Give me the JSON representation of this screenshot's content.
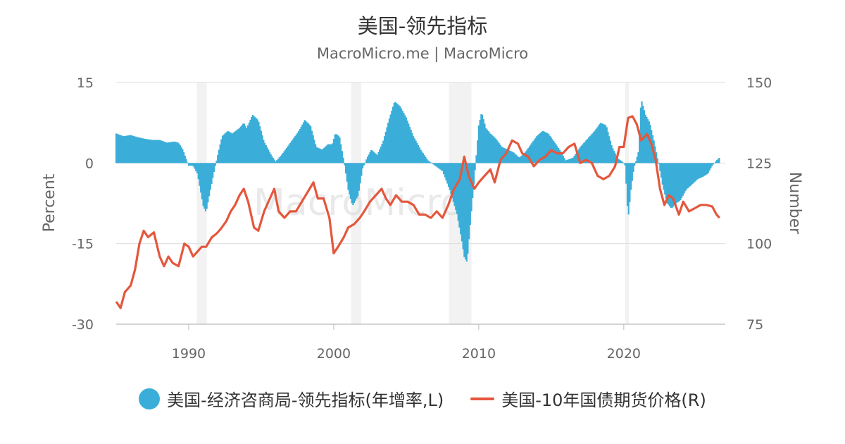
{
  "title": "美国-领先指标",
  "subtitle": "MacroMicro.me | MacroMicro",
  "watermark": "MacroMicro",
  "colors": {
    "bars": "#3aaed8",
    "line": "#e4573d",
    "recession": "#f2f2f2",
    "grid": "#dddddd"
  },
  "chart_data": {
    "type": "bar",
    "title": "美国-领先指标",
    "subtitle": "MacroMicro.me | MacroMicro",
    "left_axis": {
      "label": "Percent",
      "min": -30,
      "max": 15,
      "ticks": [
        "15",
        "0",
        "-15",
        "-30"
      ]
    },
    "right_axis": {
      "label": "Number",
      "min": 75,
      "max": 150,
      "ticks": [
        "150",
        "125",
        "100",
        "75"
      ]
    },
    "x_axis": {
      "min": 1985,
      "max": 2027,
      "ticks": [
        "1990",
        "2000",
        "2010",
        "2020"
      ]
    },
    "grid": true,
    "legend_placement": "bottom",
    "recessions": [
      [
        1990.55,
        1991.25
      ],
      [
        2001.2,
        2001.9
      ],
      [
        2007.95,
        2009.5
      ],
      [
        2020.1,
        2020.35
      ]
    ],
    "series": [
      {
        "name": "美国-经济咨商局-领先指标(年增率,L)",
        "type": "bar",
        "axis": "left",
        "points": [
          [
            1985.0,
            5.5
          ],
          [
            1985.5,
            5.0
          ],
          [
            1986.0,
            5.2
          ],
          [
            1986.5,
            4.8
          ],
          [
            1987.0,
            4.5
          ],
          [
            1987.5,
            4.3
          ],
          [
            1988.0,
            4.3
          ],
          [
            1988.5,
            3.8
          ],
          [
            1989.0,
            4.0
          ],
          [
            1989.3,
            3.8
          ],
          [
            1989.6,
            2.5
          ],
          [
            1989.8,
            1.0
          ],
          [
            1990.0,
            -0.5
          ],
          [
            1990.3,
            -0.5
          ],
          [
            1990.6,
            -2.0
          ],
          [
            1990.8,
            -5.0
          ],
          [
            1991.0,
            -8.0
          ],
          [
            1991.2,
            -9.2
          ],
          [
            1991.5,
            -5.0
          ],
          [
            1991.8,
            -1.0
          ],
          [
            1992.0,
            1.5
          ],
          [
            1992.3,
            5.0
          ],
          [
            1992.7,
            6.0
          ],
          [
            1993.0,
            5.5
          ],
          [
            1993.5,
            6.5
          ],
          [
            1993.8,
            7.5
          ],
          [
            1994.0,
            6.5
          ],
          [
            1994.4,
            9.0
          ],
          [
            1994.8,
            8.0
          ],
          [
            1995.2,
            4.0
          ],
          [
            1995.7,
            1.5
          ],
          [
            1996.0,
            0.3
          ],
          [
            1996.4,
            1.5
          ],
          [
            1996.8,
            3.0
          ],
          [
            1997.2,
            4.5
          ],
          [
            1997.6,
            6.0
          ],
          [
            1998.0,
            8.0
          ],
          [
            1998.4,
            7.0
          ],
          [
            1998.8,
            3.0
          ],
          [
            1999.2,
            2.5
          ],
          [
            1999.6,
            3.5
          ],
          [
            1999.9,
            3.5
          ],
          [
            2000.1,
            5.5
          ],
          [
            2000.4,
            5.0
          ],
          [
            2000.7,
            0.5
          ],
          [
            2001.0,
            -5.0
          ],
          [
            2001.3,
            -8.0
          ],
          [
            2001.7,
            -6.0
          ],
          [
            2002.0,
            -1.0
          ],
          [
            2002.3,
            1.0
          ],
          [
            2002.6,
            2.5
          ],
          [
            2003.0,
            1.5
          ],
          [
            2003.4,
            4.0
          ],
          [
            2003.8,
            8.0
          ],
          [
            2004.2,
            11.5
          ],
          [
            2004.6,
            10.5
          ],
          [
            2005.0,
            8.5
          ],
          [
            2005.5,
            5.0
          ],
          [
            2006.0,
            2.5
          ],
          [
            2006.5,
            0.5
          ],
          [
            2007.0,
            -0.5
          ],
          [
            2007.5,
            -1.5
          ],
          [
            2008.0,
            -5.0
          ],
          [
            2008.5,
            -9.5
          ],
          [
            2008.8,
            -14.0
          ],
          [
            2009.0,
            -17.5
          ],
          [
            2009.2,
            -18.5
          ],
          [
            2009.4,
            -12.0
          ],
          [
            2009.7,
            -3.0
          ],
          [
            2010.0,
            7.0
          ],
          [
            2010.2,
            9.5
          ],
          [
            2010.5,
            6.5
          ],
          [
            2010.8,
            5.5
          ],
          [
            2011.2,
            4.5
          ],
          [
            2011.6,
            3.0
          ],
          [
            2012.0,
            2.5
          ],
          [
            2012.4,
            2.0
          ],
          [
            2012.8,
            1.0
          ],
          [
            2013.2,
            2.0
          ],
          [
            2013.6,
            3.5
          ],
          [
            2014.0,
            5.0
          ],
          [
            2014.4,
            6.0
          ],
          [
            2014.8,
            5.5
          ],
          [
            2015.2,
            4.0
          ],
          [
            2015.7,
            2.0
          ],
          [
            2016.0,
            0.5
          ],
          [
            2016.5,
            1.0
          ],
          [
            2017.0,
            3.0
          ],
          [
            2017.5,
            4.5
          ],
          [
            2018.0,
            6.0
          ],
          [
            2018.4,
            7.5
          ],
          [
            2018.8,
            7.0
          ],
          [
            2019.2,
            3.0
          ],
          [
            2019.6,
            0.8
          ],
          [
            2019.9,
            0.3
          ],
          [
            2020.1,
            -0.5
          ],
          [
            2020.3,
            -10.5
          ],
          [
            2020.5,
            -5.0
          ],
          [
            2020.7,
            -1.0
          ],
          [
            2021.0,
            2.0
          ],
          [
            2021.2,
            12.0
          ],
          [
            2021.5,
            9.0
          ],
          [
            2021.8,
            7.5
          ],
          [
            2022.1,
            4.0
          ],
          [
            2022.4,
            0.0
          ],
          [
            2022.7,
            -4.5
          ],
          [
            2023.0,
            -7.5
          ],
          [
            2023.3,
            -8.5
          ],
          [
            2023.6,
            -7.5
          ],
          [
            2023.9,
            -7.0
          ],
          [
            2024.3,
            -5.0
          ],
          [
            2024.7,
            -4.0
          ],
          [
            2025.1,
            -3.0
          ],
          [
            2025.5,
            -2.5
          ],
          [
            2025.8,
            -2.0
          ],
          [
            2026.1,
            -0.5
          ],
          [
            2026.4,
            0.5
          ],
          [
            2026.6,
            1.0
          ]
        ]
      },
      {
        "name": "美国-10年国债期货价格(R)",
        "type": "line",
        "axis": "right",
        "points": [
          [
            1985.0,
            82.0
          ],
          [
            1985.3,
            80.0
          ],
          [
            1985.6,
            85.0
          ],
          [
            1986.0,
            87.0
          ],
          [
            1986.3,
            92.0
          ],
          [
            1986.6,
            100.0
          ],
          [
            1986.9,
            104.0
          ],
          [
            1987.2,
            102.0
          ],
          [
            1987.6,
            103.5
          ],
          [
            1988.0,
            96.0
          ],
          [
            1988.3,
            93.0
          ],
          [
            1988.6,
            96.0
          ],
          [
            1988.9,
            94.0
          ],
          [
            1989.3,
            93.0
          ],
          [
            1989.7,
            100.0
          ],
          [
            1990.0,
            99.0
          ],
          [
            1990.3,
            96.0
          ],
          [
            1990.6,
            97.5
          ],
          [
            1990.9,
            99.0
          ],
          [
            1991.2,
            99.0
          ],
          [
            1991.6,
            102.0
          ],
          [
            1991.9,
            103.0
          ],
          [
            1992.2,
            104.5
          ],
          [
            1992.6,
            107.0
          ],
          [
            1992.9,
            110.0
          ],
          [
            1993.2,
            112.0
          ],
          [
            1993.5,
            115.0
          ],
          [
            1993.8,
            117.0
          ],
          [
            1994.1,
            113.0
          ],
          [
            1994.5,
            105.0
          ],
          [
            1994.8,
            104.0
          ],
          [
            1995.2,
            110.0
          ],
          [
            1995.6,
            114.0
          ],
          [
            1995.9,
            117.0
          ],
          [
            1996.2,
            110.0
          ],
          [
            1996.6,
            108.0
          ],
          [
            1997.0,
            110.0
          ],
          [
            1997.4,
            110.0
          ],
          [
            1997.8,
            113.0
          ],
          [
            1998.2,
            116.0
          ],
          [
            1998.6,
            119.0
          ],
          [
            1998.9,
            114.0
          ],
          [
            1999.3,
            114.0
          ],
          [
            1999.7,
            108.0
          ],
          [
            2000.0,
            97.0
          ],
          [
            2000.3,
            99.0
          ],
          [
            2000.7,
            102.0
          ],
          [
            2001.0,
            105.0
          ],
          [
            2001.4,
            106.0
          ],
          [
            2001.8,
            108.0
          ],
          [
            2002.1,
            110.0
          ],
          [
            2002.5,
            113.0
          ],
          [
            2002.9,
            115.0
          ],
          [
            2003.3,
            117.0
          ],
          [
            2003.6,
            114.0
          ],
          [
            2003.9,
            112.0
          ],
          [
            2004.3,
            115.0
          ],
          [
            2004.7,
            113.0
          ],
          [
            2005.1,
            113.0
          ],
          [
            2005.5,
            112.0
          ],
          [
            2005.9,
            109.0
          ],
          [
            2006.3,
            109.0
          ],
          [
            2006.7,
            108.0
          ],
          [
            2007.1,
            110.0
          ],
          [
            2007.5,
            108.0
          ],
          [
            2007.9,
            112.0
          ],
          [
            2008.3,
            117.0
          ],
          [
            2008.7,
            120.0
          ],
          [
            2009.0,
            127.0
          ],
          [
            2009.3,
            121.0
          ],
          [
            2009.7,
            117.0
          ],
          [
            2010.0,
            119.0
          ],
          [
            2010.4,
            121.0
          ],
          [
            2010.8,
            123.0
          ],
          [
            2011.1,
            119.0
          ],
          [
            2011.5,
            126.0
          ],
          [
            2011.9,
            128.0
          ],
          [
            2012.3,
            132.0
          ],
          [
            2012.7,
            131.0
          ],
          [
            2013.0,
            128.0
          ],
          [
            2013.4,
            127.0
          ],
          [
            2013.8,
            124.0
          ],
          [
            2014.2,
            126.0
          ],
          [
            2014.6,
            127.0
          ],
          [
            2015.0,
            129.0
          ],
          [
            2015.4,
            128.0
          ],
          [
            2015.8,
            128.0
          ],
          [
            2016.2,
            130.0
          ],
          [
            2016.6,
            131.0
          ],
          [
            2017.0,
            125.0
          ],
          [
            2017.4,
            126.0
          ],
          [
            2017.8,
            125.0
          ],
          [
            2018.2,
            121.0
          ],
          [
            2018.6,
            120.0
          ],
          [
            2019.0,
            121.0
          ],
          [
            2019.4,
            124.0
          ],
          [
            2019.7,
            130.0
          ],
          [
            2020.0,
            130.0
          ],
          [
            2020.3,
            139.0
          ],
          [
            2020.6,
            139.5
          ],
          [
            2020.9,
            137.0
          ],
          [
            2021.2,
            132.0
          ],
          [
            2021.6,
            134.0
          ],
          [
            2021.9,
            131.0
          ],
          [
            2022.2,
            126.0
          ],
          [
            2022.5,
            117.0
          ],
          [
            2022.8,
            112.0
          ],
          [
            2023.1,
            115.0
          ],
          [
            2023.4,
            114.0
          ],
          [
            2023.8,
            109.0
          ],
          [
            2024.1,
            113.0
          ],
          [
            2024.5,
            110.0
          ],
          [
            2024.9,
            111.0
          ],
          [
            2025.3,
            112.0
          ],
          [
            2025.7,
            112.0
          ],
          [
            2026.1,
            111.5
          ],
          [
            2026.4,
            109.0
          ],
          [
            2026.6,
            108.0
          ]
        ]
      }
    ]
  },
  "legend": [
    {
      "label": "美国-经济咨商局-领先指标(年增率,L)",
      "kind": "dot"
    },
    {
      "label": "美国-10年国债期货价格(R)",
      "kind": "line"
    }
  ]
}
